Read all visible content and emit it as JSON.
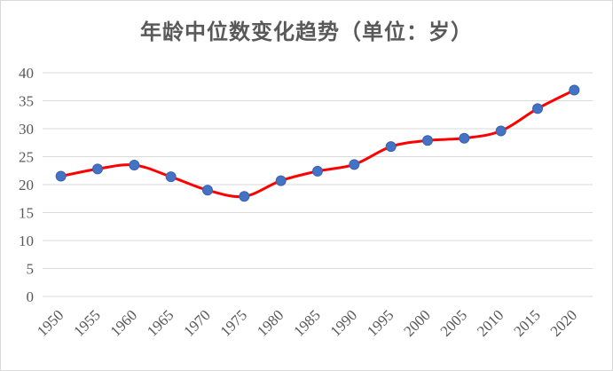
{
  "chart_data": {
    "type": "line",
    "title": "年龄中位数变化趋势（单位：岁）",
    "xlabel": "",
    "ylabel": "",
    "categories": [
      "1950",
      "1955",
      "1960",
      "1965",
      "1970",
      "1975",
      "1980",
      "1985",
      "1990",
      "1995",
      "2000",
      "2005",
      "2010",
      "2015",
      "2020"
    ],
    "series": [
      {
        "values": [
          21.5,
          22.8,
          23.5,
          21.4,
          19.0,
          17.9,
          20.7,
          22.4,
          23.6,
          26.8,
          27.9,
          28.3,
          29.6,
          33.6,
          36.9
        ]
      }
    ],
    "ylim": [
      0,
      40
    ],
    "yticks": [
      "0",
      "5",
      "10",
      "15",
      "20",
      "25",
      "30",
      "35",
      "40"
    ],
    "grid": true,
    "line_color": "#ff0000",
    "marker_color": "#4472c4",
    "smooth": true
  }
}
